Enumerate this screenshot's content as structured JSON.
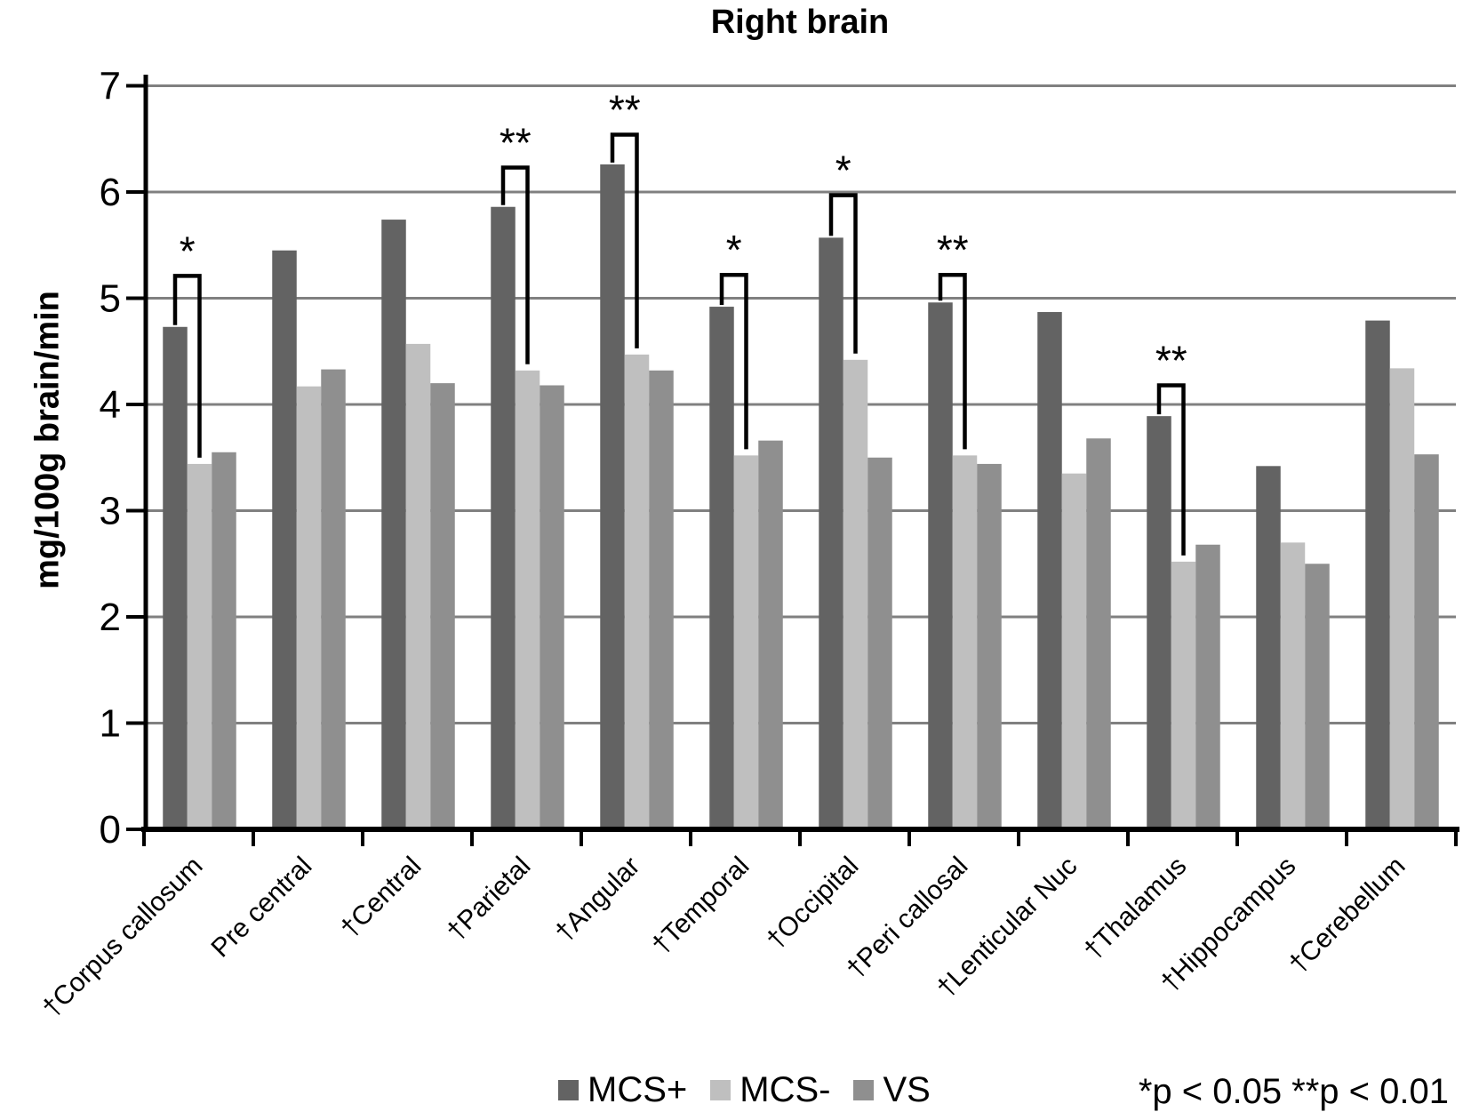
{
  "chart_data": {
    "type": "bar",
    "title": "Right brain",
    "ylabel": "mg/100g brain/min",
    "xlabel": "",
    "ylim": [
      0,
      7
    ],
    "yticks": [
      0,
      1,
      2,
      3,
      4,
      5,
      6,
      7
    ],
    "grid": true,
    "legend_position": "bottom",
    "categories": [
      "†Corpus callosum",
      "Pre central",
      "†Central",
      "†Parietal",
      "†Angular",
      "†Temporal",
      "†Occipital",
      "†Peri callosal",
      "†Lenticular Nuc",
      "†Thalamus",
      "†Hippocampus",
      "†Cerebellum"
    ],
    "series": [
      {
        "name": "MCS+",
        "color": "#636363",
        "values": [
          4.73,
          5.45,
          5.74,
          5.86,
          6.26,
          4.92,
          5.57,
          4.96,
          4.87,
          3.89,
          3.42,
          4.79
        ]
      },
      {
        "name": "MCS-",
        "color": "#bfbfbf",
        "values": [
          3.44,
          4.17,
          4.57,
          4.32,
          4.47,
          3.52,
          4.42,
          3.52,
          3.35,
          2.52,
          2.7,
          4.34
        ]
      },
      {
        "name": "VS",
        "color": "#8f8f8f",
        "values": [
          3.55,
          4.33,
          4.2,
          4.18,
          4.32,
          3.66,
          3.5,
          3.44,
          3.68,
          2.68,
          2.5,
          3.53
        ]
      }
    ],
    "significance_brackets": [
      {
        "category": "†Corpus callosum",
        "label": "*",
        "top": 5.21
      },
      {
        "category": "†Parietal",
        "label": "**",
        "top": 6.23
      },
      {
        "category": "†Angular",
        "label": "**",
        "top": 6.54
      },
      {
        "category": "†Temporal",
        "label": "*",
        "top": 5.22
      },
      {
        "category": "†Occipital",
        "label": "*",
        "top": 5.97
      },
      {
        "category": "†Peri callosal",
        "label": "**",
        "top": 5.22
      },
      {
        "category": "†Thalamus",
        "label": "**",
        "top": 4.18
      }
    ],
    "annotation": "*p < 0.05 **p < 0.01"
  },
  "colors": {
    "axis": "#000000",
    "gridline": "#808080",
    "background": "#ffffff"
  }
}
